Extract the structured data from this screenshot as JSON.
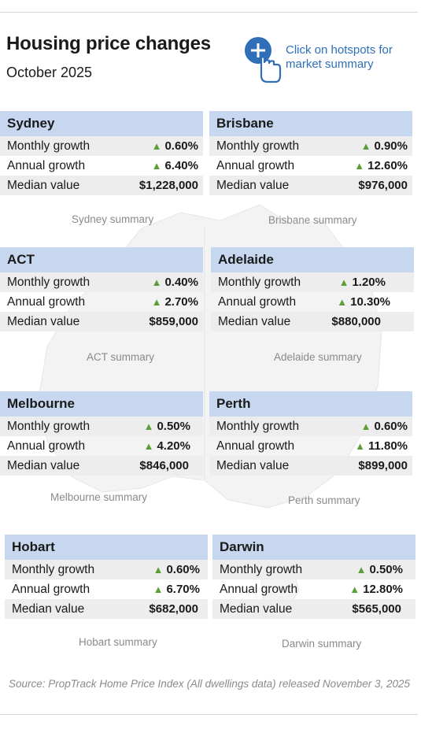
{
  "header": {
    "title": "Housing price changes",
    "subtitle": "October 2025",
    "hint": "Click on hotspots for market summary",
    "hint_icon": "tap-plus-icon",
    "accent": "#2e6fb8"
  },
  "labels": {
    "monthly": "Monthly growth",
    "annual": "Annual growth",
    "median": "Median value"
  },
  "cities": [
    {
      "name": "Sydney",
      "monthly": "0.60%",
      "annual": "6.40%",
      "median": "$1,228,000",
      "summary": "Sydney summary"
    },
    {
      "name": "Brisbane",
      "monthly": "0.90%",
      "annual": "12.60%",
      "median": "$976,000",
      "summary": "Brisbane summary"
    },
    {
      "name": "ACT",
      "monthly": "0.40%",
      "annual": "2.70%",
      "median": "$859,000",
      "summary": "ACT summary"
    },
    {
      "name": "Adelaide",
      "monthly": "1.20%",
      "annual": "10.30%",
      "median": "$880,000",
      "summary": "Adelaide summary"
    },
    {
      "name": "Melbourne",
      "monthly": "0.50%",
      "annual": "4.20%",
      "median": "$846,000",
      "summary": "Melbourne summary"
    },
    {
      "name": "Perth",
      "monthly": "0.60%",
      "annual": "11.80%",
      "median": "$899,000",
      "summary": "Perth summary"
    },
    {
      "name": "Hobart",
      "monthly": "0.60%",
      "annual": "6.70%",
      "median": "$682,000",
      "summary": "Hobart summary"
    },
    {
      "name": "Darwin",
      "monthly": "0.50%",
      "annual": "12.80%",
      "median": "$565,000",
      "summary": "Darwin summary"
    }
  ],
  "colors": {
    "header_bg": "#c6d7ef",
    "row_alt_bg": "#ededed",
    "arrow_up": "#5a9e3a",
    "summary_text": "#8a8a8a"
  },
  "source": "Source: PropTrack Home Price Index  (All dwellings data) released November 3, 2025"
}
